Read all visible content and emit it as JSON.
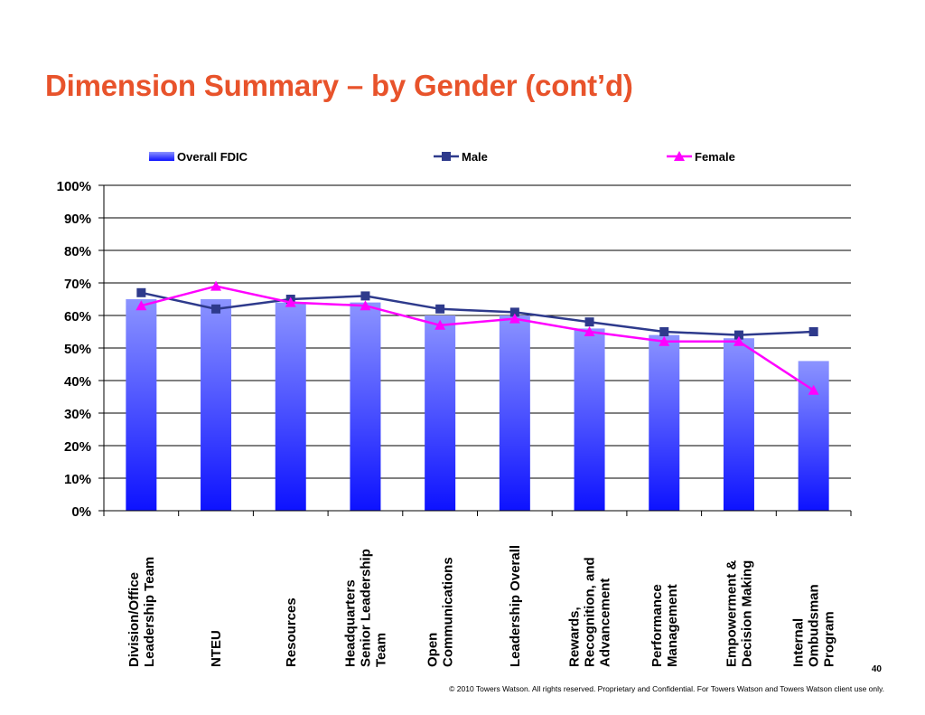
{
  "title": "Dimension Summary – by Gender (cont’d)",
  "page_number": "40",
  "copyright": "© 2010 Towers Watson. All rights reserved. Proprietary and Confidential. For Towers Watson and Towers Watson client use only.",
  "colors": {
    "title": "#e8532b",
    "bar_top": "#8c94ff",
    "bar_bottom": "#0d12ff",
    "male": "#2e3a8c",
    "female": "#ff00ff",
    "gridline": "#000000"
  },
  "chart_data": {
    "type": "bar",
    "categories": [
      [
        "Division/Office",
        "Leadership Team"
      ],
      [
        "NTEU"
      ],
      [
        "Resources"
      ],
      [
        "Headquarters",
        "Senior Leadership",
        "Team"
      ],
      [
        "Open",
        "Communications"
      ],
      [
        "Leadership Overall"
      ],
      [
        "Rewards,",
        "Recognition, and",
        "Advancement"
      ],
      [
        "Performance",
        "Management"
      ],
      [
        "Empowerment &",
        "Decision Making"
      ],
      [
        "Internal",
        "Ombudsman",
        "Program"
      ]
    ],
    "series": [
      {
        "name": "Overall FDIC",
        "kind": "bar",
        "values": [
          65,
          65,
          64,
          64,
          60,
          60,
          56,
          54,
          53,
          46
        ]
      },
      {
        "name": "Male",
        "kind": "line",
        "marker": "square",
        "values": [
          67,
          62,
          65,
          66,
          62,
          61,
          58,
          55,
          54,
          55
        ]
      },
      {
        "name": "Female",
        "kind": "line",
        "marker": "triangle",
        "values": [
          63,
          69,
          64,
          63,
          57,
          59,
          55,
          52,
          52,
          37
        ]
      }
    ],
    "y_ticks": [
      "0%",
      "10%",
      "20%",
      "30%",
      "40%",
      "50%",
      "60%",
      "70%",
      "80%",
      "90%",
      "100%"
    ],
    "ylim": [
      0,
      100
    ],
    "grid": true,
    "legend_position": "top"
  }
}
